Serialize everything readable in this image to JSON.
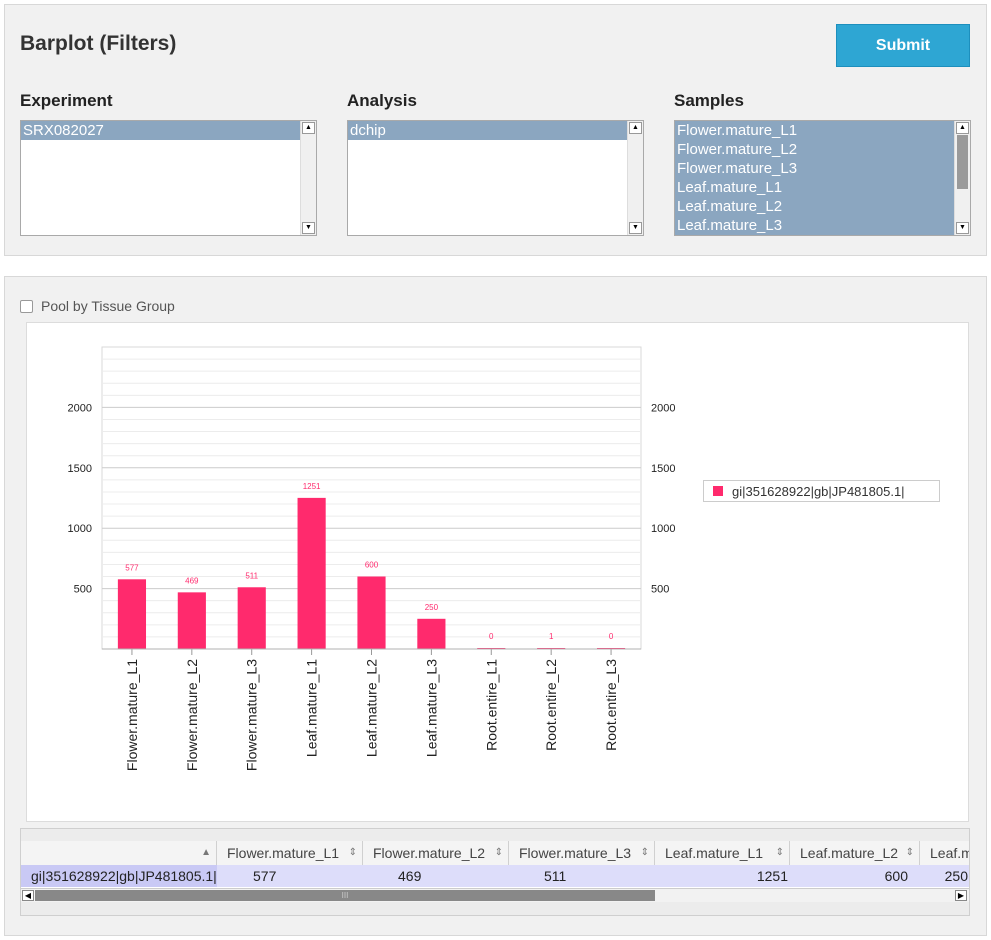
{
  "filters": {
    "title": "Barplot (Filters)",
    "submit_label": "Submit",
    "experiment": {
      "label": "Experiment",
      "options": [
        "SRX082027"
      ]
    },
    "analysis": {
      "label": "Analysis",
      "options": [
        "dchip"
      ]
    },
    "samples": {
      "label": "Samples",
      "options": [
        "Flower.mature_L1",
        "Flower.mature_L2",
        "Flower.mature_L3",
        "Leaf.mature_L1",
        "Leaf.mature_L2",
        "Leaf.mature_L3"
      ]
    }
  },
  "pool_label": "Pool by Tissue Group",
  "legend_label": "gi|351628922|gb|JP481805.1|",
  "colors": {
    "bar": "#ff2a6d",
    "submit": "#2ea6d3",
    "selected_option": "#8ba6c0"
  },
  "chart_data": {
    "type": "bar",
    "title": "",
    "xlabel": "",
    "ylabel": "",
    "categories": [
      "Flower.mature_L1",
      "Flower.mature_L2",
      "Flower.mature_L3",
      "Leaf.mature_L1",
      "Leaf.mature_L2",
      "Leaf.mature_L3",
      "Root.entire_L1",
      "Root.entire_L2",
      "Root.entire_L3"
    ],
    "series": [
      {
        "name": "gi|351628922|gb|JP481805.1|",
        "values": [
          577,
          469,
          511,
          1251,
          600,
          250,
          0,
          1,
          0
        ]
      }
    ],
    "yticks": [
      500,
      1000,
      1500,
      2000
    ],
    "ylim": [
      0,
      2500
    ],
    "grid": true,
    "legend": "right"
  },
  "table": {
    "columns": [
      "",
      "Flower.mature_L1",
      "Flower.mature_L2",
      "Flower.mature_L3",
      "Leaf.mature_L1",
      "Leaf.mature_L2",
      "Leaf.m"
    ],
    "row": [
      "gi|351628922|gb|JP481805.1|",
      "577",
      "469",
      "511",
      "1251",
      "600",
      "250"
    ],
    "scroll_grip": "III"
  }
}
